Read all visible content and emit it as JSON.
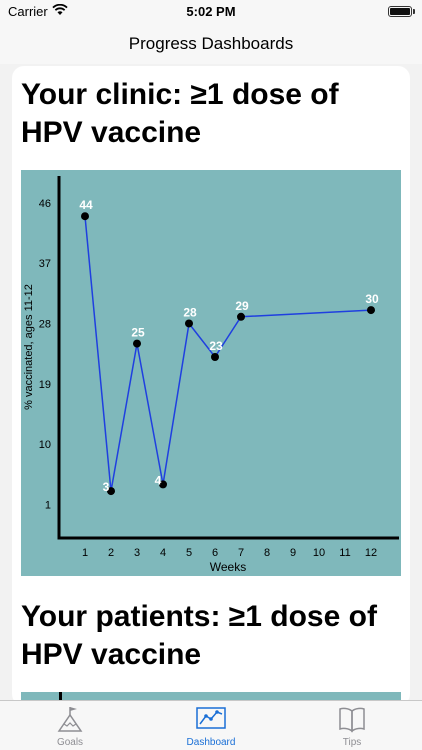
{
  "status_bar": {
    "carrier": "Carrier",
    "time": "5:02 PM"
  },
  "nav": {
    "title": "Progress Dashboards"
  },
  "card1": {
    "title_line1": "Your clinic: ≥1 dose of",
    "title_line2": "HPV vaccine"
  },
  "card2": {
    "title_line1": "Your patients: ≥1 dose of",
    "title_line2": "HPV vaccine"
  },
  "tabs": [
    {
      "label": "Goals",
      "icon": "goals-flag-icon",
      "active": false
    },
    {
      "label": "Dashboard",
      "icon": "dashboard-chart-icon",
      "active": true
    },
    {
      "label": "Tips",
      "icon": "tips-book-icon",
      "active": false
    }
  ],
  "colors": {
    "chart_bg": "#7fb8bb",
    "line": "#1f3fe0",
    "active_tab": "#1a6fd6",
    "inactive_tab": "#8e8e93"
  },
  "chart_data": {
    "type": "line",
    "xlabel": "Weeks",
    "ylabel": "% vaccinated, ages 11-12",
    "x_ticks": [
      1,
      2,
      3,
      4,
      5,
      6,
      7,
      8,
      9,
      10,
      11,
      12
    ],
    "y_ticks": [
      1,
      10,
      19,
      28,
      37,
      46
    ],
    "ylim": [
      -4,
      50
    ],
    "xlim": [
      0,
      13
    ],
    "points": [
      {
        "x": 1,
        "y": 44,
        "label": "44"
      },
      {
        "x": 2,
        "y": 3,
        "label": "3"
      },
      {
        "x": 3,
        "y": 25,
        "label": "25"
      },
      {
        "x": 4,
        "y": 4,
        "label": "4"
      },
      {
        "x": 5,
        "y": 28,
        "label": "28"
      },
      {
        "x": 6,
        "y": 23,
        "label": "23"
      },
      {
        "x": 7,
        "y": 29,
        "label": "29"
      },
      {
        "x": 12,
        "y": 30,
        "label": "30"
      }
    ]
  }
}
